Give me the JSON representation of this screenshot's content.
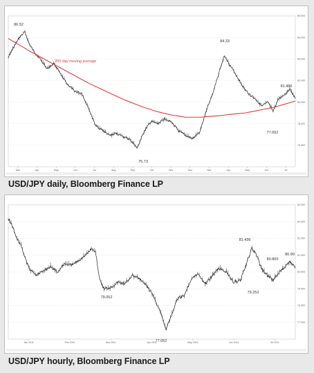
{
  "captions": {
    "daily": "USD/JPY daily, Bloomberg Finance LP",
    "hourly": "USD/JPY hourly, Bloomberg Finance LP"
  },
  "colors": {
    "price": "#2b2b2b",
    "moving_average": "#e23b3b",
    "grid": "#d9d9d9"
  },
  "chart_data": [
    {
      "type": "line",
      "title": "",
      "subtitle": "",
      "ylim": [
        74,
        88
      ],
      "y_ticks": [
        "88.000",
        "86.000",
        "84.000",
        "82.000",
        "80.000",
        "78.000",
        "76.000"
      ],
      "x_ticks": [
        "Mar",
        "Apr",
        "May",
        "Jun",
        "Jul",
        "Aug",
        "Sep",
        "Oct",
        "Nov",
        "Dec",
        "Mar",
        "Apr",
        "May",
        "Jun",
        "Jul"
      ],
      "x_year_labels": [
        "2010",
        "2011"
      ],
      "x": [
        0,
        8,
        16,
        24,
        30,
        38,
        46,
        56,
        66,
        76,
        86,
        96,
        106,
        116,
        126,
        136,
        146,
        156,
        166,
        176,
        186,
        196,
        206,
        216,
        226,
        236,
        246,
        256,
        266,
        276,
        286,
        296,
        306,
        312,
        318,
        326,
        334,
        342,
        350,
        358,
        366,
        374,
        382,
        390,
        398,
        406,
        414
      ],
      "series": [
        {
          "name": "",
          "values": [
            84.2,
            85.1,
            86.0,
            86.52,
            85.4,
            84.6,
            84.0,
            83.1,
            83.6,
            82.5,
            81.6,
            81.0,
            80.8,
            79.4,
            77.8,
            77.4,
            76.9,
            77.1,
            76.8,
            76.5,
            75.73,
            77.3,
            78.2,
            78.0,
            78.5,
            78.1,
            77.3,
            76.9,
            76.6,
            77.2,
            79.3,
            81.0,
            83.2,
            84.33,
            83.6,
            82.8,
            81.9,
            81.1,
            80.6,
            80.2,
            79.6,
            80.0,
            79.2,
            80.3,
            80.7,
            81.2,
            80.3
          ]
        },
        {
          "name": "200 day moving average",
          "values": [
            85.9,
            85.6,
            85.3,
            85.0,
            84.75,
            84.5,
            84.2,
            83.85,
            83.5,
            83.15,
            82.8,
            82.45,
            82.1,
            81.75,
            81.45,
            81.15,
            80.85,
            80.55,
            80.25,
            80.0,
            79.75,
            79.5,
            79.3,
            79.1,
            78.95,
            78.8,
            78.7,
            78.6,
            78.6,
            78.6,
            78.65,
            78.7,
            78.75,
            78.8,
            78.85,
            78.9,
            78.95,
            79.0,
            79.1,
            79.2,
            79.3,
            79.4,
            79.5,
            79.65,
            79.8,
            79.95,
            80.1
          ]
        }
      ],
      "annotations": [
        "86.52",
        "84.33",
        "81.486",
        "77.652",
        "75.73",
        "200 day moving average",
        "2011"
      ]
    },
    {
      "type": "line",
      "title": "",
      "subtitle": "",
      "ylim": [
        76,
        84
      ],
      "y_ticks": [
        "84.000",
        "83.000",
        "82.000",
        "81.000",
        "80.000",
        "79.000",
        "78.000",
        "77.000"
      ],
      "x_ticks": [
        "Jan 2011",
        "Feb 2011",
        "Mar 2011",
        "Apr 2011",
        "May 2011",
        "Jun 2011",
        "Jul 2011"
      ],
      "x": [
        0,
        6,
        12,
        18,
        24,
        30,
        40,
        50,
        60,
        70,
        80,
        90,
        100,
        110,
        118,
        124,
        130,
        136,
        146,
        156,
        166,
        176,
        186,
        196,
        206,
        212,
        218,
        224,
        230,
        240,
        250,
        260,
        270,
        280,
        290,
        300,
        310,
        320,
        330,
        338,
        346,
        352,
        360,
        368,
        376,
        384,
        392,
        400,
        408
      ],
      "series": [
        {
          "name": "",
          "values": [
            83.2,
            82.7,
            82.0,
            81.6,
            80.8,
            80.2,
            79.8,
            80.1,
            80.3,
            80.0,
            80.5,
            80.4,
            80.7,
            81.0,
            81.4,
            81.2,
            79.5,
            79.0,
            79.1,
            79.4,
            79.3,
            79.8,
            79.6,
            79.2,
            78.6,
            78.0,
            77.4,
            76.6,
            77.2,
            78.4,
            78.6,
            79.6,
            79.9,
            79.3,
            79.8,
            80.2,
            80.0,
            79.4,
            79.5,
            80.4,
            81.4,
            81.1,
            80.2,
            79.8,
            79.52,
            79.9,
            80.3,
            80.6,
            80.3
          ]
        }
      ],
      "annotations": [
        "81.436",
        "80.99",
        "80.800",
        "79.252",
        "79.052",
        "77.052"
      ]
    }
  ]
}
